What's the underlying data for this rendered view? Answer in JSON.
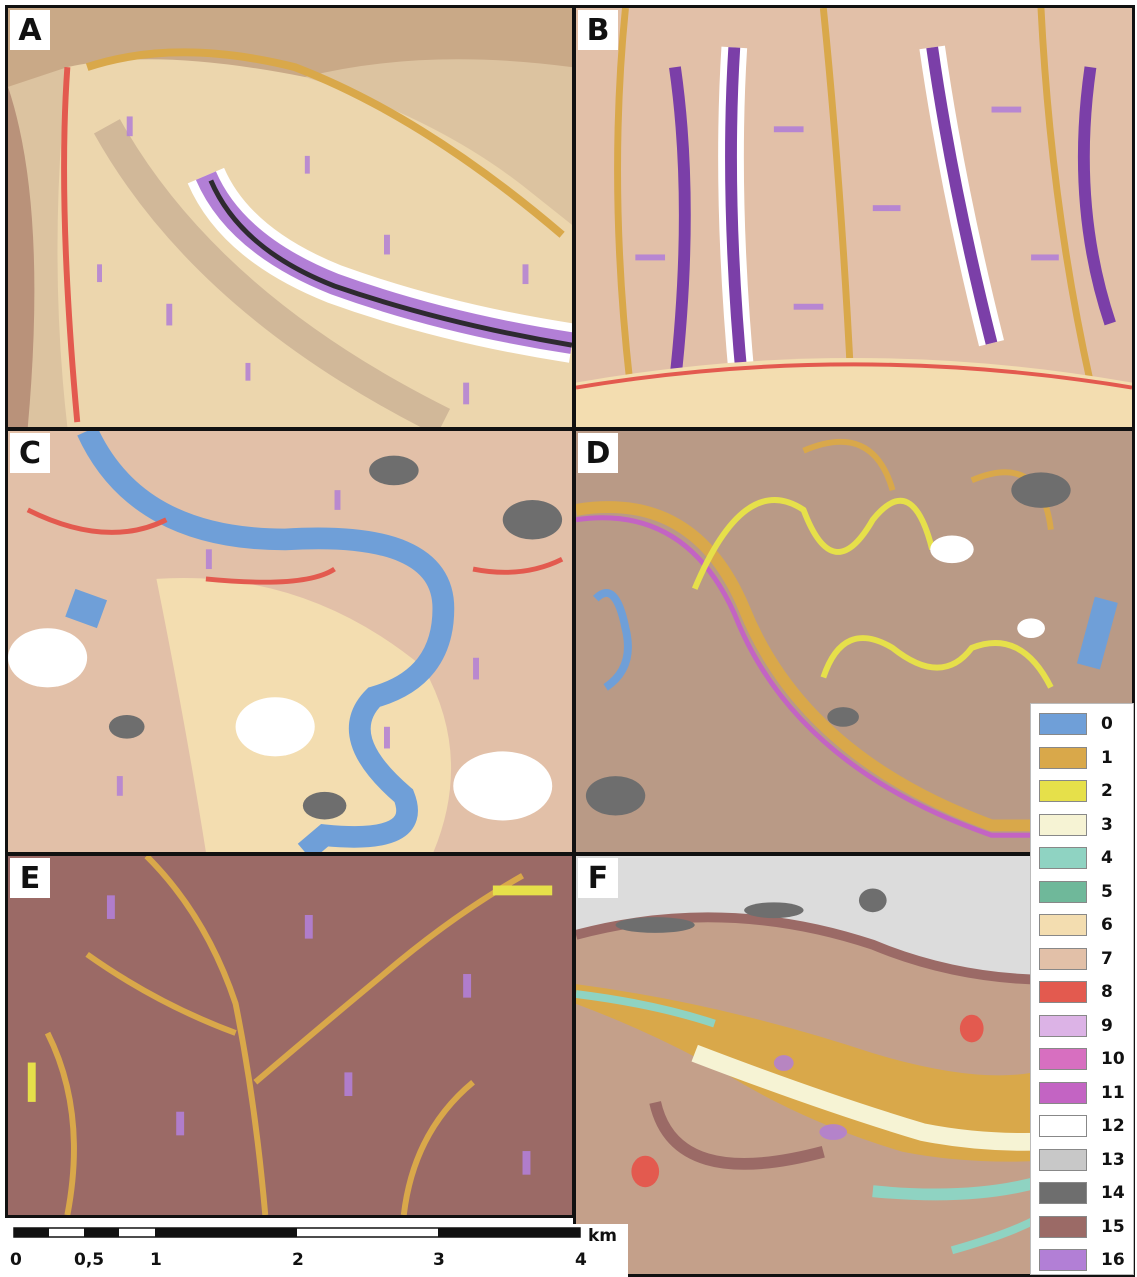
{
  "panels": [
    {
      "id": "A"
    },
    {
      "id": "B"
    },
    {
      "id": "C"
    },
    {
      "id": "D"
    },
    {
      "id": "E"
    },
    {
      "id": "F"
    }
  ],
  "legend": {
    "items": [
      {
        "label": "0",
        "color": "#6f9fd8"
      },
      {
        "label": "1",
        "color": "#d9a84a"
      },
      {
        "label": "2",
        "color": "#e6e04a"
      },
      {
        "label": "3",
        "color": "#f6f3d4"
      },
      {
        "label": "4",
        "color": "#8fd3c2"
      },
      {
        "label": "5",
        "color": "#6fb89a"
      },
      {
        "label": "6",
        "color": "#f3ddb0"
      },
      {
        "label": "7",
        "color": "#e2c0a8"
      },
      {
        "label": "8",
        "color": "#e35a4f"
      },
      {
        "label": "9",
        "color": "#dcb3e6"
      },
      {
        "label": "10",
        "color": "#d76fc0"
      },
      {
        "label": "11",
        "color": "#c364c3"
      },
      {
        "label": "12",
        "color": "#ffffff"
      },
      {
        "label": "13",
        "color": "#c8c8c8"
      },
      {
        "label": "14",
        "color": "#6e6e6e"
      },
      {
        "label": "15",
        "color": "#9b6a66"
      },
      {
        "label": "16",
        "color": "#b27fd6"
      }
    ]
  },
  "scalebar": {
    "ticks": [
      "0",
      "0,5",
      "1",
      "2",
      "3",
      "4"
    ],
    "unit": "km"
  }
}
